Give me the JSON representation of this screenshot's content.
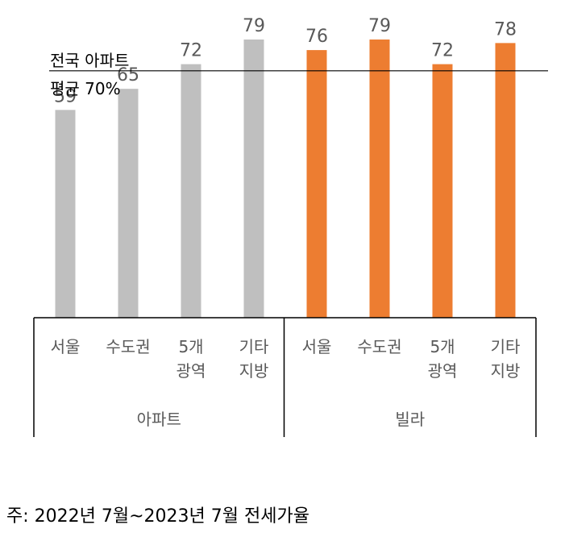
{
  "chart_data": {
    "type": "bar",
    "groups": [
      {
        "name": "아파트",
        "color": "#BFBFBF",
        "categories": [
          [
            "서울"
          ],
          [
            "수도권"
          ],
          [
            "5개",
            "광역"
          ],
          [
            "기타",
            "지방"
          ]
        ],
        "values": [
          59,
          65,
          72,
          79
        ]
      },
      {
        "name": "빌라",
        "color": "#ED7D31",
        "categories": [
          [
            "서울"
          ],
          [
            "수도권"
          ],
          [
            "5개",
            "광역"
          ],
          [
            "기타",
            "지방"
          ]
        ],
        "values": [
          76,
          79,
          72,
          78
        ]
      }
    ],
    "reference_line": {
      "value": 70,
      "label_lines": [
        "전국 아파트",
        "평균 70%"
      ]
    },
    "ylim": [
      0,
      100
    ],
    "grid": false,
    "legend": "none"
  },
  "footnote": "주: 2022년 7월~2023년 7월 전세가율"
}
